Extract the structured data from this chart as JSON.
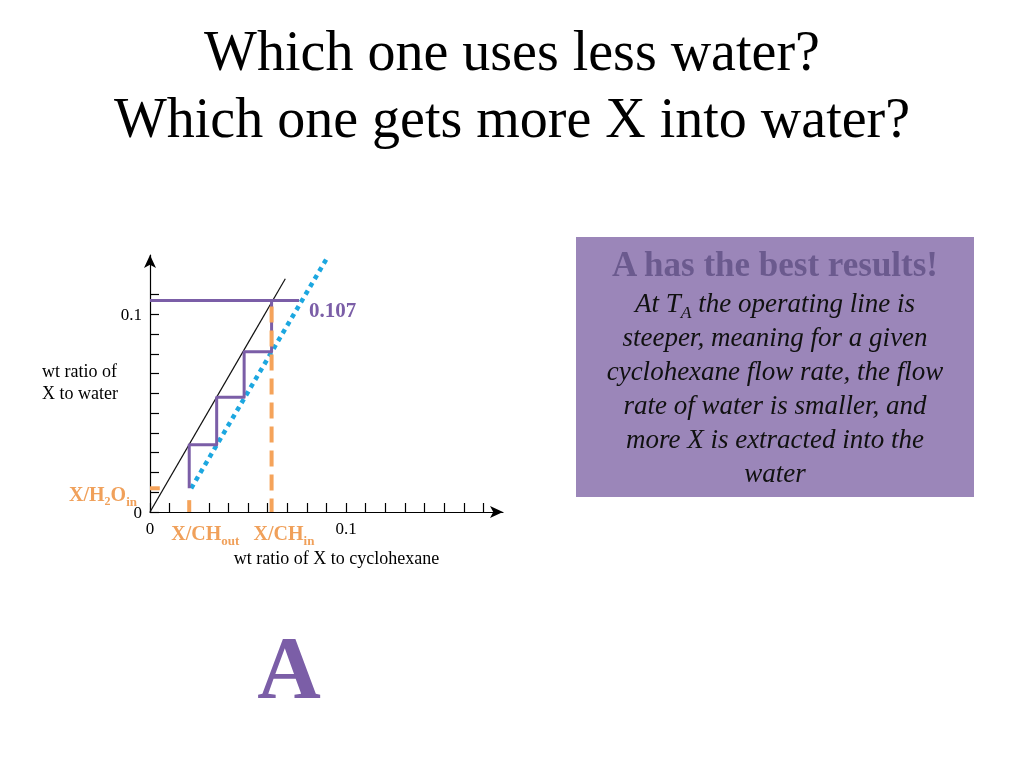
{
  "chart_data": {
    "type": "line",
    "title": "Which one uses less water?\nWhich one gets more X into water?",
    "xlabel": "wt ratio of X to cyclohexane",
    "ylabel": "wt ratio of X to water",
    "xlim": [
      0,
      0.18
    ],
    "xticks": [
      0,
      {
        "value": 0.01,
        "label": null
      },
      {
        "value": 0.02,
        "label": null
      },
      {
        "value": 0.03,
        "label": null
      },
      {
        "value": 0.04,
        "label": null
      },
      {
        "value": 0.05,
        "label": null
      },
      {
        "value": 0.06,
        "label": null
      },
      {
        "value": 0.07,
        "label": null
      },
      {
        "value": 0.08,
        "label": null
      },
      {
        "value": 0.09,
        "label": null
      },
      0.1,
      {
        "value": 0.11,
        "label": null
      },
      {
        "value": 0.12,
        "label": null
      },
      {
        "value": 0.13,
        "label": null
      },
      {
        "value": 0.14,
        "label": null
      },
      {
        "value": 0.15,
        "label": null
      },
      {
        "value": 0.16,
        "label": null
      },
      {
        "value": 0.17,
        "label": null
      }
    ],
    "ylim": [
      0,
      0.13
    ],
    "yticks": [
      0,
      {
        "value": 0.01,
        "label": null
      },
      {
        "value": 0.02,
        "label": null
      },
      {
        "value": 0.03,
        "label": null
      },
      {
        "value": 0.04,
        "label": null
      },
      {
        "value": 0.05,
        "label": null
      },
      {
        "value": 0.06,
        "label": null
      },
      {
        "value": 0.07,
        "label": null
      },
      {
        "value": 0.08,
        "label": null
      },
      {
        "value": 0.09,
        "label": null
      },
      0.1,
      {
        "value": 0.11,
        "label": null
      }
    ],
    "marker": "none",
    "series": [
      {
        "color": "#111111",
        "line_style": "solid",
        "x": [
          0,
          0.069
        ],
        "values": [
          0,
          0.118
        ]
      },
      {
        "color": "#1ca7e0",
        "line_style": "dotted",
        "x": [
          0.021,
          0.09
        ],
        "values": [
          0.012,
          0.128
        ]
      },
      {
        "color": "#7b5ea7",
        "line_style": "solid",
        "x": [
          0,
          0.076
        ],
        "values": [
          0.107,
          0.107
        ],
        "value_labels": [
          null,
          "0.107"
        ]
      },
      {
        "color": "#7b5ea7",
        "line_style": "solid",
        "x": [
          0.062,
          0.062,
          0.048,
          0.048,
          0.034,
          0.034,
          0.02,
          0.02
        ],
        "values": [
          0.107,
          0.081,
          0.081,
          0.058,
          0.058,
          0.034,
          0.034,
          0.012
        ]
      },
      {
        "color": "#f5a35a",
        "line_style": "dashed",
        "x": [
          0.062,
          0.062
        ],
        "values": [
          0.104,
          0
        ]
      },
      {
        "color": "#f5a35a",
        "line_style": "dashed",
        "x": [
          0.02,
          0.02
        ],
        "values": [
          0.006,
          0
        ]
      },
      {
        "color": "#f5a35a",
        "line_style": "dashed",
        "x": [
          0,
          0.005
        ],
        "values": [
          0.012,
          0.012
        ]
      }
    ],
    "annotations": [
      "A has the best results!",
      "At T$_{A}$ the operating line is steeper, meaning for a given cyclohexane flow rate, the flow rate of water is smaller, and more X is extracted into the water",
      "A",
      {
        "text": "X/CH$_{out}$",
        "x": 0.02,
        "y": 0
      },
      {
        "text": "X/CH$_{in}$",
        "x": 0.062,
        "y": 0
      },
      {
        "text": "X/H₂O$_{in}$",
        "x": 0,
        "y": 0.012
      }
    ]
  }
}
